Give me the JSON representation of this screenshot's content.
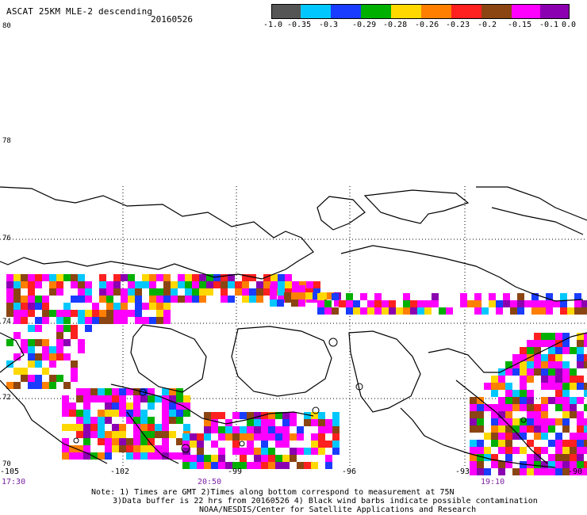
{
  "header": {
    "title": "ASCAT 25KM MLE-2 descending",
    "date": "20160526"
  },
  "colorbar": {
    "colors": [
      "#555555",
      "#00c8ff",
      "#1a3cff",
      "#00b000",
      "#ffd800",
      "#ff7f00",
      "#ff2020",
      "#8b4513",
      "#ff00ff",
      "#8b00b0"
    ],
    "labels": [
      "-1.0",
      "-0.35",
      "-0.3",
      "-0.29",
      "-0.28",
      "-0.26",
      "-0.23",
      "-0.2",
      "-0.15",
      "-0.1",
      "0.0"
    ]
  },
  "axes": {
    "lat_labels": [
      "80",
      "78",
      "76",
      "74",
      "72",
      "70"
    ],
    "lon_labels": [
      "-105",
      "-102",
      "-99",
      "-96",
      "-93",
      "-90"
    ],
    "time_labels": [
      "17:30",
      "20:50",
      "19:10"
    ]
  },
  "notes": {
    "line1": "Note: 1) Times are GMT 2)Times along bottom correspond to measurement at 75N",
    "line2": "3)Data buffer is 22 hrs from 20160526 4) Black wind barbs indicate possible contamination",
    "line3": "NOAA/NESDIS/Center for Satellite Applications and Research"
  },
  "map": {
    "background": "#ffffff",
    "coastline_color": "#000000"
  }
}
